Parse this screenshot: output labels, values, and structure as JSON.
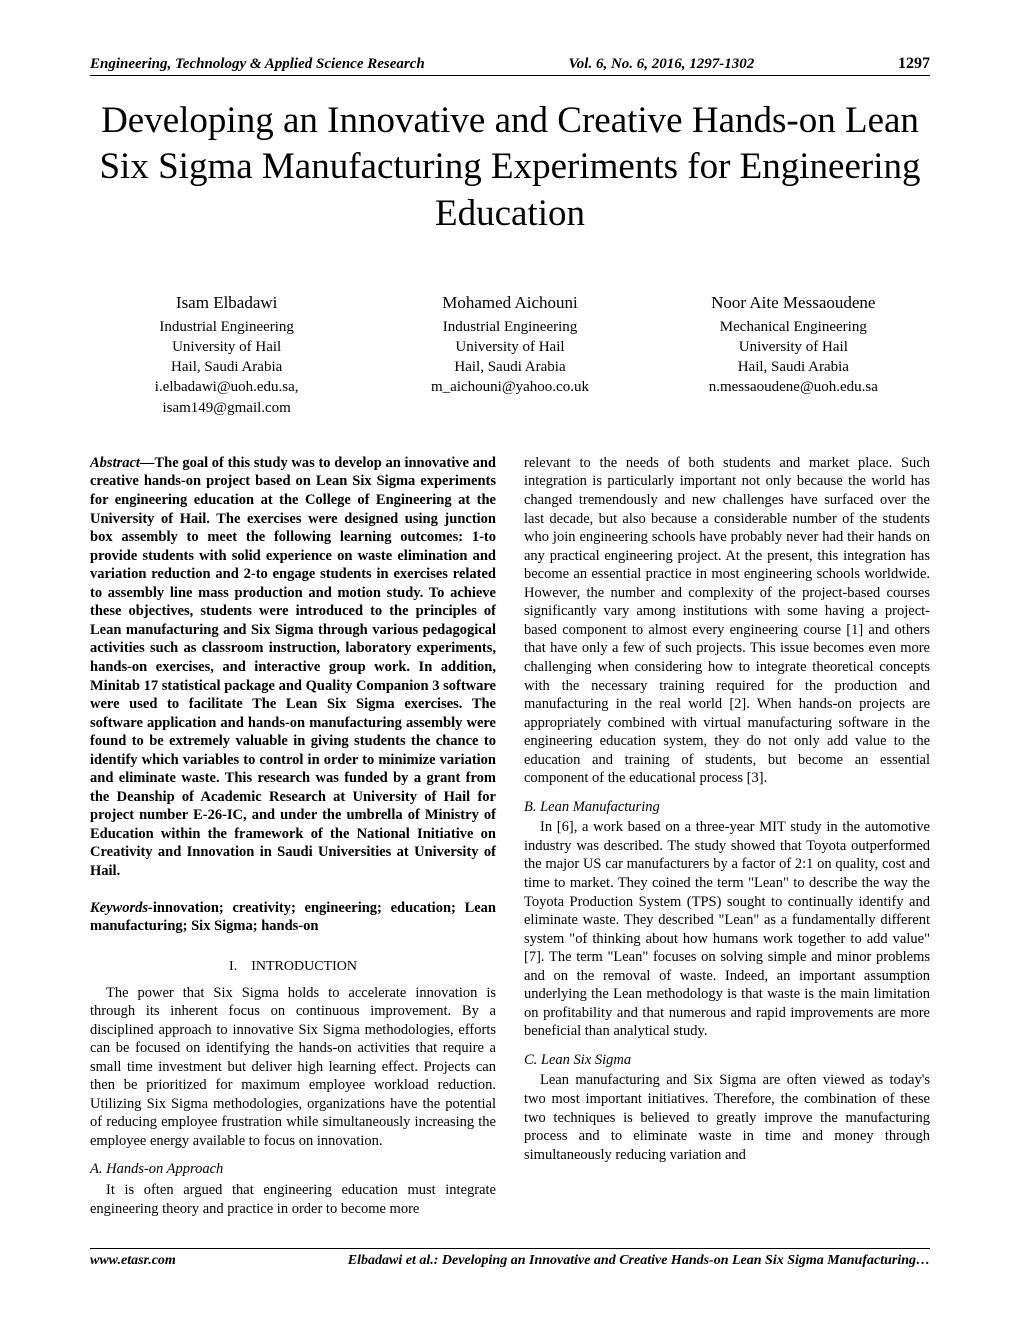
{
  "header": {
    "journal": "Engineering, Technology & Applied Science Research",
    "issue": "Vol. 6, No. 6, 2016, 1297-1302",
    "pagenum": "1297"
  },
  "title": "Developing an Innovative and Creative Hands-on Lean Six Sigma Manufacturing Experiments for Engineering Education",
  "authors": [
    {
      "name": "Isam Elbadawi",
      "dept": "Industrial Engineering",
      "univ": "University of Hail",
      "loc": "Hail, Saudi Arabia",
      "email": "i.elbadawi@uoh.edu.sa,   isam149@gmail.com"
    },
    {
      "name": "Mohamed Aichouni",
      "dept": "Industrial Engineering",
      "univ": "University of Hail",
      "loc": "Hail, Saudi Arabia",
      "email": "m_aichouni@yahoo.co.uk"
    },
    {
      "name": "Noor Aite Messaoudene",
      "dept": "Mechanical Engineering",
      "univ": "University of Hail",
      "loc": "Hail, Saudi Arabia",
      "email": "n.messaoudene@uoh.edu.sa"
    }
  ],
  "abstract": {
    "label": "Abstract—",
    "text": "The goal of this study was to develop an innovative and creative hands-on project based on Lean Six Sigma experiments for engineering education at the College of Engineering at the University of Hail. The exercises were designed using junction box assembly to meet the following learning outcomes: 1-to provide students with solid experience on waste elimination and variation reduction and 2-to engage students in exercises related to assembly line mass production and motion study. To achieve these objectives, students were introduced to the principles of Lean manufacturing and Six Sigma through various pedagogical activities such as classroom instruction, laboratory experiments, hands-on exercises, and interactive group work. In addition, Minitab 17 statistical package and Quality Companion 3 software were used to facilitate The Lean Six Sigma exercises. The software application and hands-on manufacturing assembly were found to be extremely valuable in giving students the chance to identify which variables to control in order to minimize variation and eliminate waste. This research was funded by a grant from the Deanship of Academic Research at University of Hail for project number E-26-IC, and under the umbrella of Ministry of Education within the framework of the National Initiative on Creativity and Innovation in Saudi Universities at University of Hail."
  },
  "keywords": {
    "label": "Keywords-",
    "text": "innovation; creativity; engineering; education; Lean manufacturing; Six Sigma; hands-on"
  },
  "sections": {
    "intro_num": "I.",
    "intro_title": "INTRODUCTION",
    "intro_para": "The power that Six Sigma holds to accelerate innovation is through its inherent focus on continuous improvement. By a disciplined approach to innovative Six Sigma methodologies, efforts can be focused on identifying the hands-on activities that require a small time investment but deliver high learning effect. Projects can then be prioritized for maximum employee workload reduction. Utilizing Six Sigma methodologies, organizations have the potential of reducing employee frustration while simultaneously increasing the employee energy available to focus on innovation.",
    "sub_a": "A. Hands-on Approach",
    "sub_a_para": "It is often argued that engineering education must integrate engineering theory and practice in order to become more",
    "col2_para1": "relevant to the needs of both students and market place. Such integration is particularly important not only because the world has changed tremendously and new challenges have surfaced over the last decade, but also because a considerable number of the students who join engineering schools have probably never had their hands on any practical engineering project. At the present, this integration has become an essential practice in most engineering schools worldwide. However, the number and complexity of the project-based courses significantly vary among institutions with some having a project-based component to almost every engineering course [1] and others that have only a few of such projects. This issue becomes even more challenging when considering how to integrate theoretical concepts with the necessary training required for the production and manufacturing in the real world [2]. When hands-on projects are appropriately combined with virtual manufacturing software in the engineering education system, they do not only add value to the education and training of students, but become an essential component of the educational process [3].",
    "sub_b": "B. Lean Manufacturing",
    "sub_b_para": "In [6], a work based on a three-year MIT study in the automotive industry was described. The study showed that Toyota outperformed the major US car manufacturers by a factor of 2:1 on quality, cost and time to market. They coined the term \"Lean\" to describe the way the Toyota Production System (TPS) sought to continually identify and eliminate waste. They described \"Lean\" as a fundamentally different system \"of thinking about how humans work together to add value\"[7]. The term \"Lean\" focuses on solving simple and minor problems and on the removal of waste. Indeed, an important assumption underlying the Lean methodology is that waste is the main limitation on profitability and that numerous and rapid improvements are more beneficial than analytical study.",
    "sub_c": "C. Lean Six Sigma",
    "sub_c_para": "Lean manufacturing and Six Sigma are often viewed as today's two most important initiatives. Therefore, the combination of these two techniques is believed to greatly improve the manufacturing process and to eliminate waste in time and money through simultaneously reducing variation and"
  },
  "footer": {
    "site": "www.etasr.com",
    "cite": "Elbadawi et al.: Developing an Innovative and Creative Hands-on Lean Six Sigma Manufacturing…"
  }
}
